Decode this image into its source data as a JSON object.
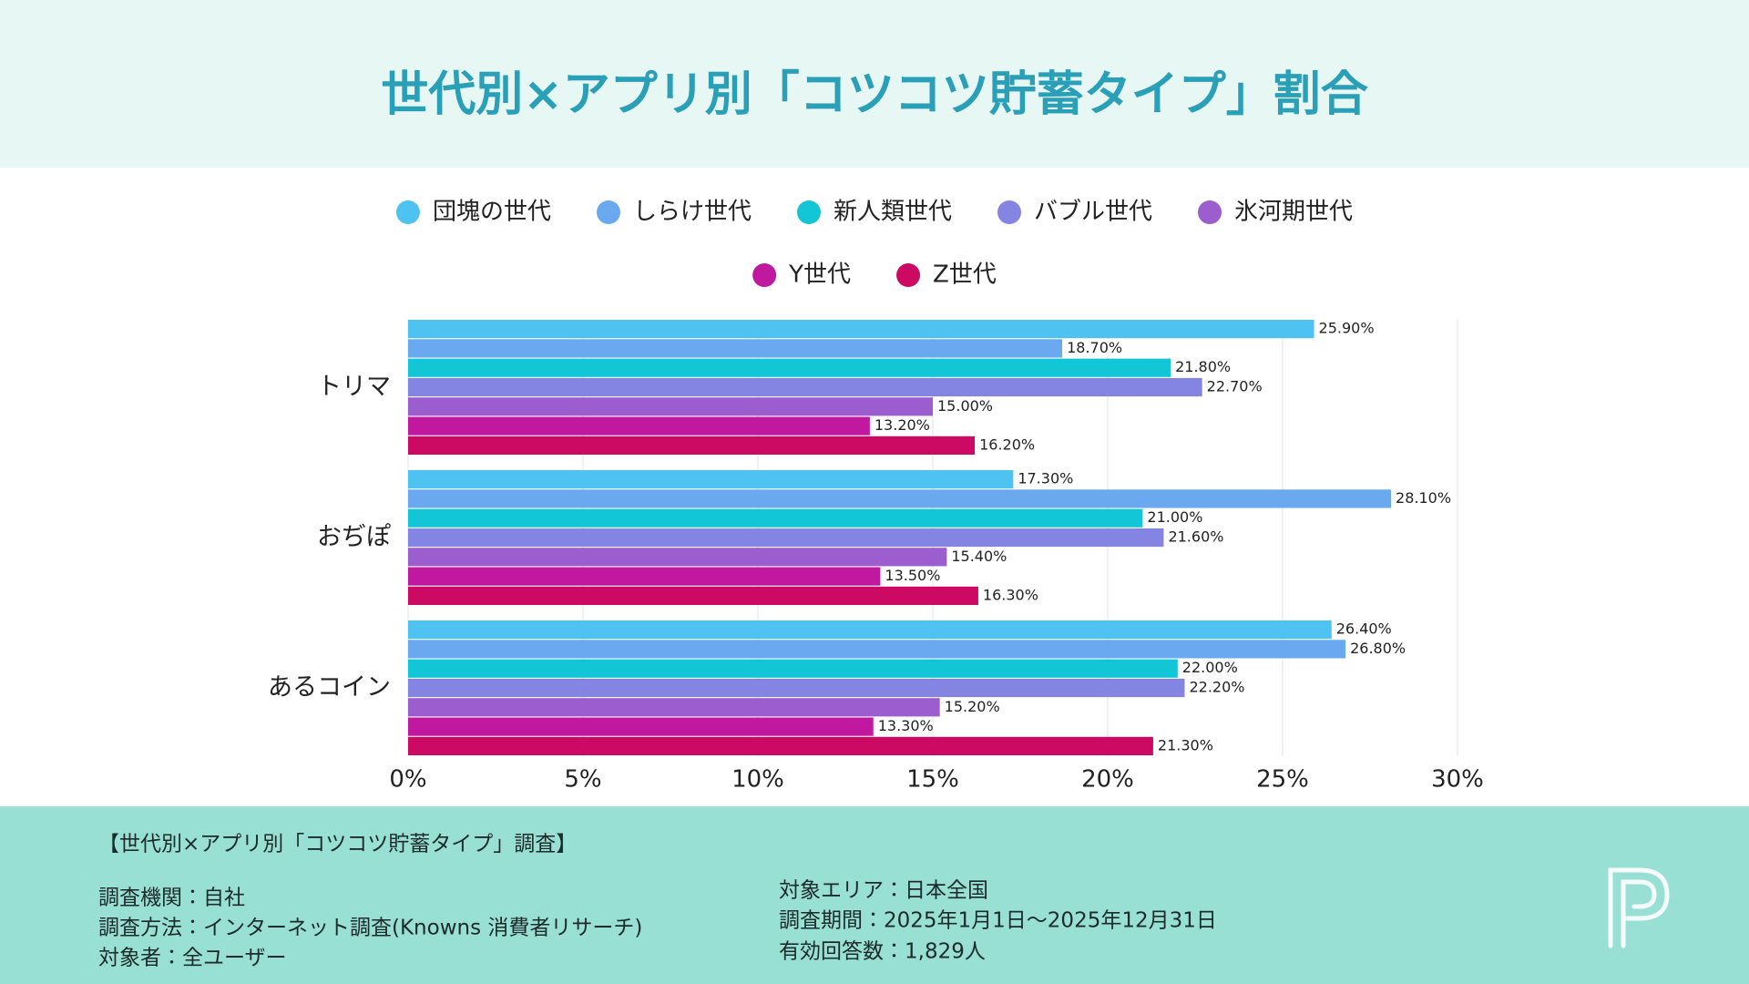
{
  "chart_data": {
    "type": "bar",
    "orientation": "horizontal",
    "title": "世代別×アプリ別「コツコツ貯蓄タイプ」割合",
    "categories": [
      "トリマ",
      "おぢぽ",
      "あるコイン"
    ],
    "series": [
      {
        "name": "団塊の世代",
        "color": "#4ec3f2",
        "values": [
          25.9,
          17.3,
          26.4
        ],
        "value_labels": [
          "25.90%",
          "17.30%",
          "26.40%"
        ]
      },
      {
        "name": "しらけ世代",
        "color": "#6aa9f0",
        "values": [
          18.7,
          28.1,
          26.8
        ],
        "value_labels": [
          "18.70%",
          "28.10%",
          "26.80%"
        ]
      },
      {
        "name": "新人類世代",
        "color": "#12c6d6",
        "values": [
          21.8,
          21.0,
          22.0
        ],
        "value_labels": [
          "21.80%",
          "21.00%",
          "22.00%"
        ]
      },
      {
        "name": "バブル世代",
        "color": "#8484e2",
        "values": [
          22.7,
          21.6,
          22.2
        ],
        "value_labels": [
          "22.70%",
          "21.60%",
          "22.20%"
        ]
      },
      {
        "name": "氷河期世代",
        "color": "#9c5dce",
        "values": [
          15.0,
          15.4,
          15.2
        ],
        "value_labels": [
          "15.00%",
          "15.40%",
          "15.20%"
        ]
      },
      {
        "name": "Y世代",
        "color": "#c0189e",
        "values": [
          13.2,
          13.5,
          13.3
        ],
        "value_labels": [
          "13.20%",
          "13.50%",
          "13.30%"
        ]
      },
      {
        "name": "Z世代",
        "color": "#cc0a64",
        "values": [
          16.2,
          16.3,
          21.3
        ],
        "value_labels": [
          "16.20%",
          "16.30%",
          "21.30%"
        ]
      }
    ],
    "xlim": [
      0,
      30
    ],
    "xticks": [
      {
        "value": 0,
        "label": "0%"
      },
      {
        "value": 5,
        "label": "5%"
      },
      {
        "value": 10,
        "label": "10%"
      },
      {
        "value": 15,
        "label": "15%"
      },
      {
        "value": 20,
        "label": "20%"
      },
      {
        "value": 25,
        "label": "25%"
      },
      {
        "value": 30,
        "label": "30%"
      }
    ],
    "grid": true,
    "legend": "top"
  },
  "footer": {
    "heading": "【世代別×アプリ別「コツコツ貯蓄タイプ」調査】",
    "left": [
      "調査機関：自社",
      "調査方法：インターネット調査(Knowns 消費者リサーチ)",
      "対象者：全ユーザー"
    ],
    "right": [
      "対象エリア：日本全国",
      "調査期間：2025年1月1日〜2025年12月31日",
      "有効回答数：1,829人"
    ]
  }
}
